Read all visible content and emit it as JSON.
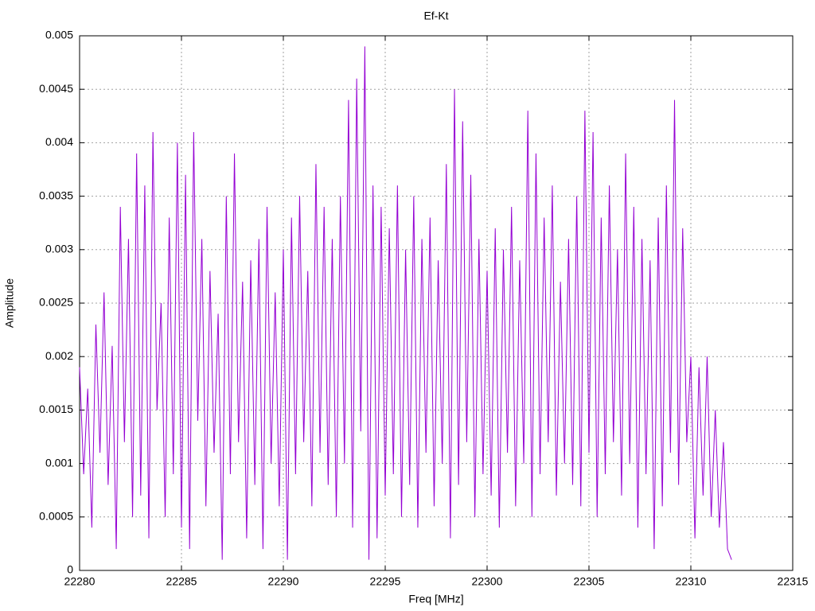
{
  "chart_data": {
    "type": "line",
    "title": "Ef-Kt",
    "x_label": "Freq [MHz]",
    "y_label": "Amplitude",
    "color": "#9400d3",
    "grid": true,
    "xlim": [
      22280,
      22315
    ],
    "xticks": [
      22280,
      22285,
      22290,
      22295,
      22300,
      22305,
      22310,
      22315
    ],
    "ylim": [
      0,
      0.005
    ],
    "yticks": [
      0,
      0.0005,
      0.001,
      0.0015,
      0.002,
      0.0025,
      0.003,
      0.0035,
      0.004,
      0.0045,
      0.005
    ],
    "x": [
      22280.0,
      22280.2,
      22280.4,
      22280.6,
      22280.8,
      22281.0,
      22281.2,
      22281.4,
      22281.6,
      22281.8,
      22282.0,
      22282.2,
      22282.4,
      22282.6,
      22282.8,
      22283.0,
      22283.2,
      22283.4,
      22283.6,
      22283.8,
      22284.0,
      22284.2,
      22284.4,
      22284.6,
      22284.8,
      22285.0,
      22285.2,
      22285.4,
      22285.6,
      22285.8,
      22286.0,
      22286.2,
      22286.4,
      22286.6,
      22286.8,
      22287.0,
      22287.2,
      22287.4,
      22287.6,
      22287.8,
      22288.0,
      22288.2,
      22288.4,
      22288.6,
      22288.8,
      22289.0,
      22289.2,
      22289.4,
      22289.6,
      22289.8,
      22290.0,
      22290.2,
      22290.4,
      22290.6,
      22290.8,
      22291.0,
      22291.2,
      22291.4,
      22291.6,
      22291.8,
      22292.0,
      22292.2,
      22292.4,
      22292.6,
      22292.8,
      22293.0,
      22293.2,
      22293.4,
      22293.6,
      22293.8,
      22294.0,
      22294.2,
      22294.4,
      22294.6,
      22294.8,
      22295.0,
      22295.2,
      22295.4,
      22295.6,
      22295.8,
      22296.0,
      22296.2,
      22296.4,
      22296.6,
      22296.8,
      22297.0,
      22297.2,
      22297.4,
      22297.6,
      22297.8,
      22298.0,
      22298.2,
      22298.4,
      22298.6,
      22298.8,
      22299.0,
      22299.2,
      22299.4,
      22299.6,
      22299.8,
      22300.0,
      22300.2,
      22300.4,
      22300.6,
      22300.8,
      22301.0,
      22301.2,
      22301.4,
      22301.6,
      22301.8,
      22302.0,
      22302.2,
      22302.4,
      22302.6,
      22302.8,
      22303.0,
      22303.2,
      22303.4,
      22303.6,
      22303.8,
      22304.0,
      22304.2,
      22304.4,
      22304.6,
      22304.8,
      22305.0,
      22305.2,
      22305.4,
      22305.6,
      22305.8,
      22306.0,
      22306.2,
      22306.4,
      22306.6,
      22306.8,
      22307.0,
      22307.2,
      22307.4,
      22307.6,
      22307.8,
      22308.0,
      22308.2,
      22308.4,
      22308.6,
      22308.8,
      22309.0,
      22309.2,
      22309.4,
      22309.6,
      22309.8,
      22310.0,
      22310.2,
      22310.4,
      22310.6,
      22310.8,
      22311.0,
      22311.2,
      22311.4,
      22311.6,
      22311.8,
      22312.0
    ],
    "values": [
      0.0019,
      0.0009,
      0.0017,
      0.0004,
      0.0023,
      0.0011,
      0.0026,
      0.0008,
      0.0021,
      0.0002,
      0.0034,
      0.0012,
      0.0031,
      0.0005,
      0.0039,
      0.0007,
      0.0036,
      0.0003,
      0.0041,
      0.0015,
      0.0025,
      0.0005,
      0.0033,
      0.0009,
      0.004,
      0.0004,
      0.0037,
      0.0002,
      0.0041,
      0.0014,
      0.0031,
      0.0006,
      0.0028,
      0.0011,
      0.0024,
      0.0001,
      0.0035,
      0.0009,
      0.0039,
      0.0012,
      0.0027,
      0.0003,
      0.0029,
      0.0008,
      0.0031,
      0.0002,
      0.0034,
      0.001,
      0.0026,
      0.0006,
      0.003,
      0.0001,
      0.0033,
      0.0009,
      0.0035,
      0.0012,
      0.0028,
      0.0006,
      0.0038,
      0.0011,
      0.0034,
      0.0008,
      0.0031,
      0.0005,
      0.0035,
      0.001,
      0.0044,
      0.0004,
      0.0046,
      0.0013,
      0.0049,
      0.0001,
      0.0036,
      0.0003,
      0.0034,
      0.0007,
      0.0032,
      0.0009,
      0.0036,
      0.0005,
      0.003,
      0.0008,
      0.0035,
      0.0004,
      0.0031,
      0.0011,
      0.0033,
      0.0006,
      0.0029,
      0.001,
      0.0038,
      0.0003,
      0.0045,
      0.0008,
      0.0042,
      0.0012,
      0.0037,
      0.0005,
      0.0031,
      0.0009,
      0.0028,
      0.0007,
      0.0032,
      0.0004,
      0.003,
      0.0011,
      0.0034,
      0.0006,
      0.0029,
      0.001,
      0.0043,
      0.0005,
      0.0039,
      0.0009,
      0.0033,
      0.0012,
      0.0036,
      0.0007,
      0.0027,
      0.001,
      0.0031,
      0.0008,
      0.0035,
      0.0006,
      0.0043,
      0.0011,
      0.0041,
      0.0005,
      0.0033,
      0.0009,
      0.0036,
      0.0012,
      0.003,
      0.0007,
      0.0039,
      0.001,
      0.0034,
      0.0004,
      0.0031,
      0.0009,
      0.0029,
      0.0002,
      0.0033,
      0.0006,
      0.0036,
      0.0011,
      0.0044,
      0.0008,
      0.0032,
      0.0012,
      0.002,
      0.0003,
      0.0019,
      0.0007,
      0.002,
      0.0005,
      0.0015,
      0.0004,
      0.0012,
      0.0002,
      0.0001
    ]
  }
}
